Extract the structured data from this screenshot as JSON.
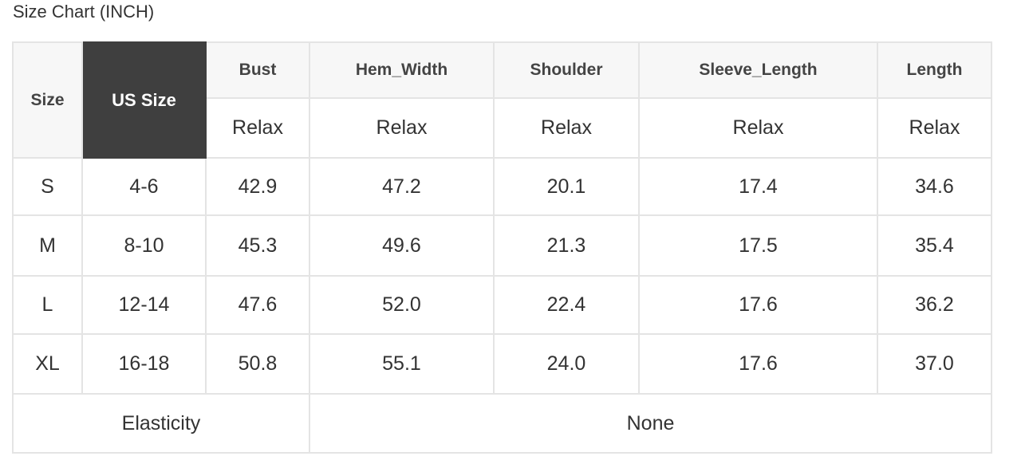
{
  "title": "Size Chart (INCH)",
  "header": {
    "size": "Size",
    "us_size": "US Size",
    "columns": [
      "Bust",
      "Hem_Width",
      "Shoulder",
      "Sleeve_Length",
      "Length"
    ],
    "fit": [
      "Relax",
      "Relax",
      "Relax",
      "Relax",
      "Relax"
    ]
  },
  "rows": [
    [
      "S",
      "4-6",
      "42.9",
      "47.2",
      "20.1",
      "17.4",
      "34.6"
    ],
    [
      "M",
      "8-10",
      "45.3",
      "49.6",
      "21.3",
      "17.5",
      "35.4"
    ],
    [
      "L",
      "12-14",
      "47.6",
      "52.0",
      "22.4",
      "17.6",
      "36.2"
    ],
    [
      "XL",
      "16-18",
      "50.8",
      "55.1",
      "24.0",
      "17.6",
      "37.0"
    ]
  ],
  "elasticity": {
    "label": "Elasticity",
    "value": "None"
  },
  "colors": {
    "header_bg": "#f7f7f7",
    "us_size_bg": "#3f3f3f",
    "border": "#e4e4e4"
  }
}
